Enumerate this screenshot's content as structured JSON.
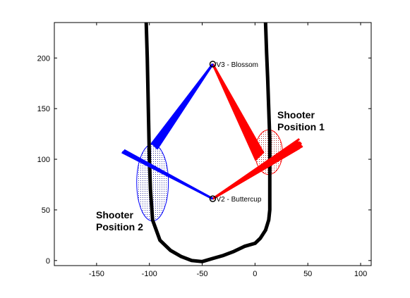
{
  "chart_data": {
    "type": "line",
    "title": "",
    "xlabel": "",
    "ylabel": "",
    "xlim": [
      -190,
      110
    ],
    "ylim": [
      -5,
      235
    ],
    "grid": false,
    "xticks": [
      -150,
      -100,
      -50,
      0,
      50,
      100
    ],
    "yticks": [
      0,
      50,
      100,
      150,
      200
    ],
    "colors": {
      "outline": "#000000",
      "shooter1": "#ff0000",
      "shooter2": "#0000ff",
      "ellipse1_fill": "#c06060",
      "ellipse2_fill": "#6060b0"
    },
    "outline": [
      [
        -103,
        235
      ],
      [
        -102,
        200
      ],
      [
        -101,
        150
      ],
      [
        -100,
        100
      ],
      [
        -99,
        70
      ],
      [
        -97,
        40
      ],
      [
        -90,
        20
      ],
      [
        -80,
        10
      ],
      [
        -70,
        4
      ],
      [
        -60,
        0
      ],
      [
        -50,
        -1
      ],
      [
        -40,
        2
      ],
      [
        -30,
        5
      ],
      [
        -20,
        9
      ],
      [
        -10,
        14
      ],
      [
        0,
        17
      ],
      [
        5,
        22
      ],
      [
        10,
        30
      ],
      [
        13,
        40
      ],
      [
        14,
        50
      ],
      [
        14,
        75
      ],
      [
        14,
        100
      ],
      [
        14,
        120
      ],
      [
        13,
        150
      ],
      [
        12,
        180
      ],
      [
        11,
        205
      ],
      [
        10,
        235
      ]
    ],
    "markers": [
      {
        "label": "V3 - Blossom",
        "x": -40,
        "y": 194
      },
      {
        "label": "V2 - Buttercup",
        "x": -40,
        "y": 61
      }
    ],
    "shooters": [
      {
        "label": "Shooter\nPosition 1",
        "ellipse": {
          "cx": 13,
          "cy": 107,
          "rx": 13,
          "ry": 22
        },
        "color": "red",
        "lines": [
          [
            [
              -40,
              194
            ],
            [
              5,
              103
            ]
          ],
          [
            [
              -40,
              194
            ],
            [
              6,
              104
            ]
          ],
          [
            [
              -40,
              194
            ],
            [
              4,
              102
            ]
          ],
          [
            [
              -40,
              194
            ],
            [
              7,
              105
            ]
          ],
          [
            [
              -40,
              194
            ],
            [
              3,
              101
            ]
          ],
          [
            [
              -40,
              194
            ],
            [
              2,
              100
            ]
          ],
          [
            [
              -40,
              194
            ],
            [
              8,
              106
            ]
          ],
          [
            [
              -40,
              194
            ],
            [
              1,
              99
            ]
          ],
          [
            [
              -40,
              61
            ],
            [
              42,
              120
            ]
          ],
          [
            [
              -40,
              61
            ],
            [
              43,
              117
            ]
          ],
          [
            [
              -40,
              61
            ],
            [
              44,
              114
            ]
          ],
          [
            [
              -40,
              61
            ],
            [
              41,
              118
            ]
          ],
          [
            [
              -40,
              61
            ],
            [
              45,
              113
            ]
          ],
          [
            [
              -40,
              61
            ],
            [
              40,
              116
            ]
          ],
          [
            [
              -40,
              61
            ],
            [
              42,
              111
            ]
          ],
          [
            [
              -40,
              61
            ],
            [
              44,
              116
            ]
          ]
        ]
      },
      {
        "label": "Shooter\nPosition 2",
        "ellipse": {
          "cx": -97,
          "cy": 77,
          "rx": 15,
          "ry": 38
        },
        "color": "blue",
        "lines": [
          [
            [
              -40,
              194
            ],
            [
              -95,
              112
            ]
          ],
          [
            [
              -40,
              194
            ],
            [
              -96,
              113
            ]
          ],
          [
            [
              -40,
              194
            ],
            [
              -94,
              111
            ]
          ],
          [
            [
              -40,
              194
            ],
            [
              -97,
              114
            ]
          ],
          [
            [
              -40,
              194
            ],
            [
              -93,
              110
            ]
          ],
          [
            [
              -40,
              194
            ],
            [
              -98,
              115
            ]
          ],
          [
            [
              -40,
              61
            ],
            [
              -125,
              108
            ]
          ],
          [
            [
              -40,
              61
            ],
            [
              -126,
              107
            ]
          ],
          [
            [
              -40,
              61
            ],
            [
              -124,
              109
            ]
          ]
        ]
      }
    ]
  }
}
